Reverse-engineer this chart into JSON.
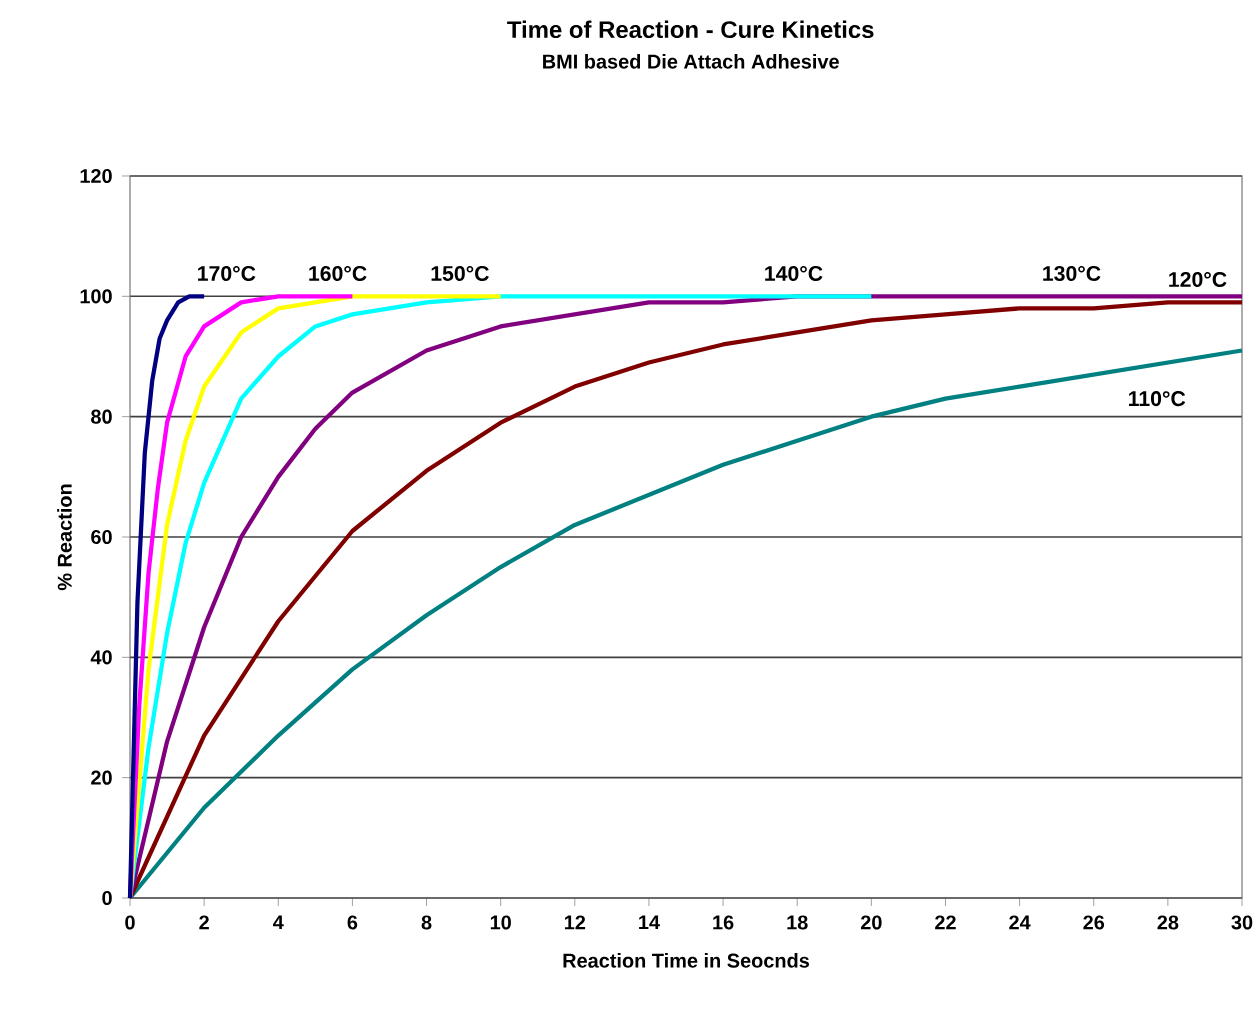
{
  "chart_data": {
    "type": "line",
    "title": "Time of Reaction - Cure Kinetics",
    "subtitle": "BMI based Die Attach Adhesive",
    "xlabel": "Reaction  Time in Seocnds",
    "ylabel": "% Reaction",
    "xlim": [
      0,
      30
    ],
    "ylim": [
      0,
      120
    ],
    "xticks": [
      0,
      2,
      4,
      6,
      8,
      10,
      12,
      14,
      16,
      18,
      20,
      22,
      24,
      26,
      28,
      30
    ],
    "yticks": [
      0,
      20,
      40,
      60,
      80,
      100,
      120
    ],
    "grid": "y",
    "legend": false,
    "marker": "none",
    "line_style": "solid",
    "series": [
      {
        "name": "170°C",
        "color": "#000080",
        "x": [
          0,
          0.2,
          0.4,
          0.6,
          0.8,
          1.0,
          1.3,
          1.6,
          2
        ],
        "values": [
          0,
          49,
          74,
          86,
          93,
          96,
          99,
          100,
          100
        ]
      },
      {
        "name": "160°C",
        "color": "#ff00ff",
        "x": [
          0,
          0.25,
          0.5,
          0.75,
          1,
          1.5,
          2,
          3,
          4,
          5,
          6
        ],
        "values": [
          0,
          32,
          54,
          68,
          79,
          90,
          95,
          99,
          100,
          100,
          100
        ]
      },
      {
        "name": "150°C",
        "color": "#ffff00",
        "x": [
          0,
          0.5,
          1,
          1.5,
          2,
          3,
          4,
          5,
          6,
          8,
          10
        ],
        "values": [
          0,
          38,
          62,
          76,
          85,
          94,
          98,
          99,
          100,
          100,
          100
        ]
      },
      {
        "name": "140°C",
        "color": "#00ffff",
        "x": [
          0,
          0.5,
          1,
          1.5,
          2,
          3,
          4,
          5,
          6,
          8,
          10,
          12,
          15,
          20
        ],
        "values": [
          0,
          25,
          44,
          59,
          69,
          83,
          90,
          95,
          97,
          99,
          100,
          100,
          100,
          100
        ]
      },
      {
        "name": "130°C",
        "color": "#800080",
        "x": [
          0,
          1,
          2,
          3,
          4,
          5,
          6,
          8,
          10,
          12,
          14,
          16,
          18,
          20,
          24,
          30
        ],
        "values": [
          0,
          26,
          45,
          60,
          70,
          78,
          84,
          91,
          95,
          97,
          99,
          99,
          100,
          100,
          100,
          100
        ]
      },
      {
        "name": "120°C",
        "color": "#800000",
        "x": [
          0,
          2,
          4,
          6,
          8,
          10,
          12,
          14,
          16,
          18,
          20,
          22,
          24,
          26,
          28,
          30
        ],
        "values": [
          0,
          27,
          46,
          61,
          71,
          79,
          85,
          89,
          92,
          94,
          96,
          97,
          98,
          98,
          99,
          99
        ]
      },
      {
        "name": "110°C",
        "color": "#008080",
        "x": [
          0,
          2,
          4,
          6,
          8,
          10,
          12,
          14,
          16,
          18,
          20,
          22,
          24,
          26,
          28,
          30
        ],
        "values": [
          0,
          15,
          27,
          38,
          47,
          55,
          62,
          67,
          72,
          76,
          80,
          83,
          85,
          87,
          89,
          91
        ]
      }
    ]
  }
}
